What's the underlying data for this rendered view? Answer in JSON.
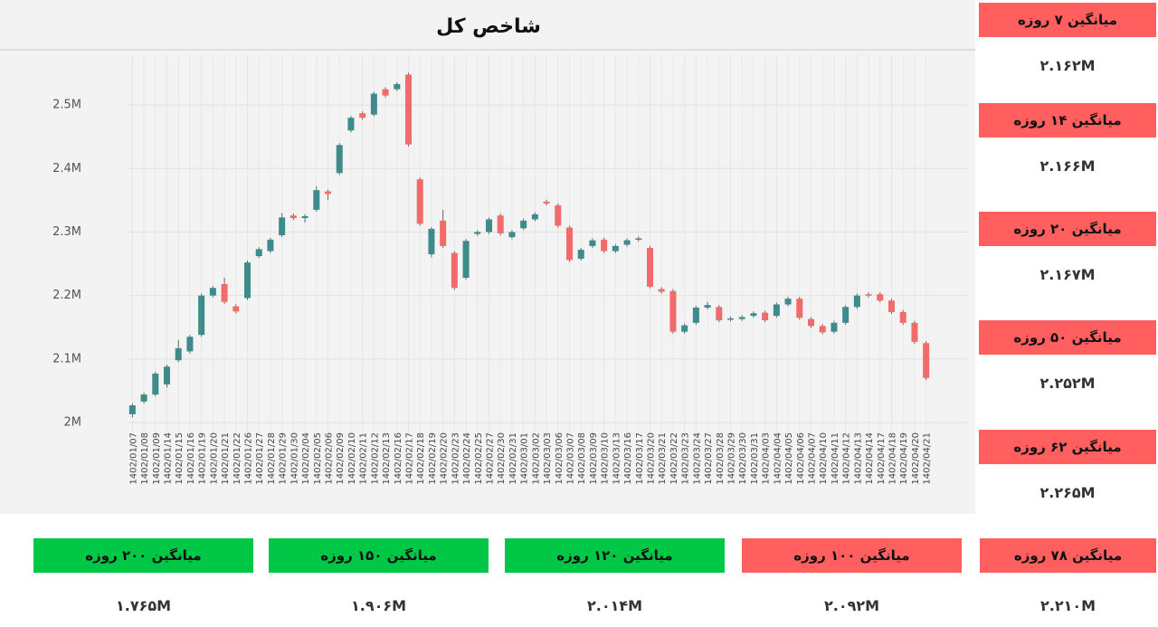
{
  "chart_data": {
    "type": "candlestick",
    "title": "شاخص کل",
    "categories": [
      "1402/01/07",
      "1402/01/08",
      "1402/01/09",
      "1402/01/14",
      "1402/01/15",
      "1402/01/16",
      "1402/01/19",
      "1402/01/20",
      "1402/01/21",
      "1402/01/22",
      "1402/01/26",
      "1402/01/27",
      "1402/01/28",
      "1402/01/29",
      "1402/01/30",
      "1402/02/04",
      "1402/02/05",
      "1402/02/06",
      "1402/02/09",
      "1402/02/10",
      "1402/02/11",
      "1402/02/12",
      "1402/02/13",
      "1402/02/16",
      "1402/02/17",
      "1402/02/18",
      "1402/02/19",
      "1402/02/20",
      "1402/02/23",
      "1402/02/24",
      "1402/02/25",
      "1402/02/27",
      "1402/02/30",
      "1402/02/31",
      "1402/03/01",
      "1402/03/02",
      "1402/03/03",
      "1402/03/06",
      "1402/03/07",
      "1402/03/08",
      "1402/03/09",
      "1402/03/10",
      "1402/03/13",
      "1402/03/16",
      "1402/03/17",
      "1402/03/20",
      "1402/03/21",
      "1402/03/22",
      "1402/03/23",
      "1402/03/24",
      "1402/03/27",
      "1402/03/28",
      "1402/03/29",
      "1402/03/30",
      "1402/03/31",
      "1402/04/03",
      "1402/04/04",
      "1402/04/05",
      "1402/04/06",
      "1402/04/07",
      "1402/04/10",
      "1402/04/11",
      "1402/04/12",
      "1402/04/13",
      "1402/04/14",
      "1402/04/17",
      "1402/04/18",
      "1402/04/19",
      "1402/04/20",
      "1402/04/21"
    ],
    "open": [
      2013000,
      2033000,
      2044000,
      2060000,
      2098000,
      2112000,
      2138000,
      2200000,
      2218000,
      2183000,
      2196000,
      2262000,
      2270000,
      2295000,
      2326000,
      2322000,
      2335000,
      2364000,
      2393000,
      2460000,
      2487000,
      2485000,
      2525000,
      2525000,
      2548000,
      2383000,
      2265000,
      2318000,
      2267000,
      2228000,
      2297000,
      2300000,
      2326000,
      2292000,
      2306000,
      2320000,
      2348000,
      2342000,
      2307000,
      2258000,
      2278000,
      2288000,
      2270000,
      2280000,
      2288000,
      2275000,
      2210000,
      2207000,
      2143000,
      2157000,
      2181000,
      2182000,
      2162000,
      2163000,
      2168000,
      2173000,
      2168000,
      2186000,
      2195000,
      2163000,
      2152000,
      2143000,
      2157000,
      2182000,
      2202000,
      2202000,
      2192000,
      2174000,
      2157000,
      2125000
    ],
    "high": [
      2030000,
      2047000,
      2080000,
      2091000,
      2130000,
      2138000,
      2203000,
      2215000,
      2228000,
      2186000,
      2255000,
      2276000,
      2291000,
      2330000,
      2329000,
      2328000,
      2372000,
      2367000,
      2440000,
      2483000,
      2490000,
      2521000,
      2528000,
      2536000,
      2551000,
      2386000,
      2308000,
      2335000,
      2270000,
      2289000,
      2303000,
      2323000,
      2329000,
      2303000,
      2321000,
      2331000,
      2351000,
      2345000,
      2310000,
      2275000,
      2290000,
      2291000,
      2281000,
      2290000,
      2293000,
      2278000,
      2213000,
      2210000,
      2156000,
      2184000,
      2190000,
      2185000,
      2167000,
      2169000,
      2175000,
      2176000,
      2189000,
      2198000,
      2198000,
      2166000,
      2155000,
      2160000,
      2185000,
      2203000,
      2205000,
      2205000,
      2195000,
      2177000,
      2160000,
      2128000
    ],
    "low": [
      2008000,
      2030000,
      2041000,
      2055000,
      2095000,
      2109000,
      2135000,
      2197000,
      2187000,
      2172000,
      2193000,
      2259000,
      2267000,
      2292000,
      2319000,
      2315000,
      2332000,
      2350000,
      2390000,
      2457000,
      2477000,
      2482000,
      2512000,
      2522000,
      2435000,
      2310000,
      2260000,
      2275000,
      2209000,
      2225000,
      2294000,
      2297000,
      2295000,
      2289000,
      2303000,
      2317000,
      2342000,
      2307000,
      2253000,
      2255000,
      2275000,
      2267000,
      2267000,
      2277000,
      2285000,
      2211000,
      2203000,
      2140000,
      2140000,
      2154000,
      2178000,
      2158000,
      2159000,
      2160000,
      2165000,
      2158000,
      2165000,
      2183000,
      2162000,
      2149000,
      2139000,
      2140000,
      2154000,
      2179000,
      2197000,
      2189000,
      2171000,
      2154000,
      2124000,
      2067000
    ],
    "close": [
      2027000,
      2044000,
      2077000,
      2088000,
      2117000,
      2135000,
      2200000,
      2212000,
      2190000,
      2175000,
      2252000,
      2273000,
      2288000,
      2323000,
      2322000,
      2325000,
      2366000,
      2360000,
      2437000,
      2480000,
      2480000,
      2518000,
      2515000,
      2533000,
      2438000,
      2313000,
      2305000,
      2278000,
      2212000,
      2286000,
      2300000,
      2320000,
      2298000,
      2300000,
      2318000,
      2328000,
      2345000,
      2310000,
      2256000,
      2272000,
      2287000,
      2270000,
      2278000,
      2287000,
      2290000,
      2214000,
      2206000,
      2143000,
      2153000,
      2181000,
      2185000,
      2161000,
      2164000,
      2166000,
      2172000,
      2161000,
      2186000,
      2195000,
      2165000,
      2152000,
      2142000,
      2157000,
      2182000,
      2200000,
      2200000,
      2192000,
      2174000,
      2157000,
      2127000,
      2070000
    ],
    "up_color": "#3d8b8b",
    "down_color": "#f26b6b",
    "ylim": [
      1980000,
      2580000
    ],
    "yticks": [
      {
        "value": 2000000,
        "label": "2M"
      },
      {
        "value": 2100000,
        "label": "2.1M"
      },
      {
        "value": 2200000,
        "label": "2.2M"
      },
      {
        "value": 2300000,
        "label": "2.3M"
      },
      {
        "value": 2400000,
        "label": "2.4M"
      },
      {
        "value": 2500000,
        "label": "2.5M"
      }
    ],
    "grid": true
  },
  "side_cards": [
    {
      "label": "میانگین ۷ روزه",
      "value": "۲.۱۶۲M",
      "color": "#ff5f5f"
    },
    {
      "label": "میانگین ۱۴ روزه",
      "value": "۲.۱۶۶M",
      "color": "#ff5f5f"
    },
    {
      "label": "میانگین ۲۰ روزه",
      "value": "۲.۱۶۷M",
      "color": "#ff5f5f"
    },
    {
      "label": "میانگین ۵۰ روزه",
      "value": "۲.۲۵۲M",
      "color": "#ff5f5f"
    },
    {
      "label": "میانگین ۶۲ روزه",
      "value": "۲.۲۶۵M",
      "color": "#ff5f5f"
    }
  ],
  "bottom_cards": [
    {
      "label": "میانگین ۷۸ روزه",
      "value": "۲.۲۱۰M",
      "color": "#ff5f5f"
    },
    {
      "label": "میانگین ۱۰۰ روزه",
      "value": "۲.۰۹۲M",
      "color": "#ff5f5f"
    },
    {
      "label": "میانگین ۱۲۰ روزه",
      "value": "۲.۰۱۴M",
      "color": "#00c846"
    },
    {
      "label": "میانگین ۱۵۰ روزه",
      "value": "۱.۹۰۶M",
      "color": "#00c846"
    },
    {
      "label": "میانگین ۲۰۰ روزه",
      "value": "۱.۷۶۵M",
      "color": "#00c846"
    }
  ]
}
